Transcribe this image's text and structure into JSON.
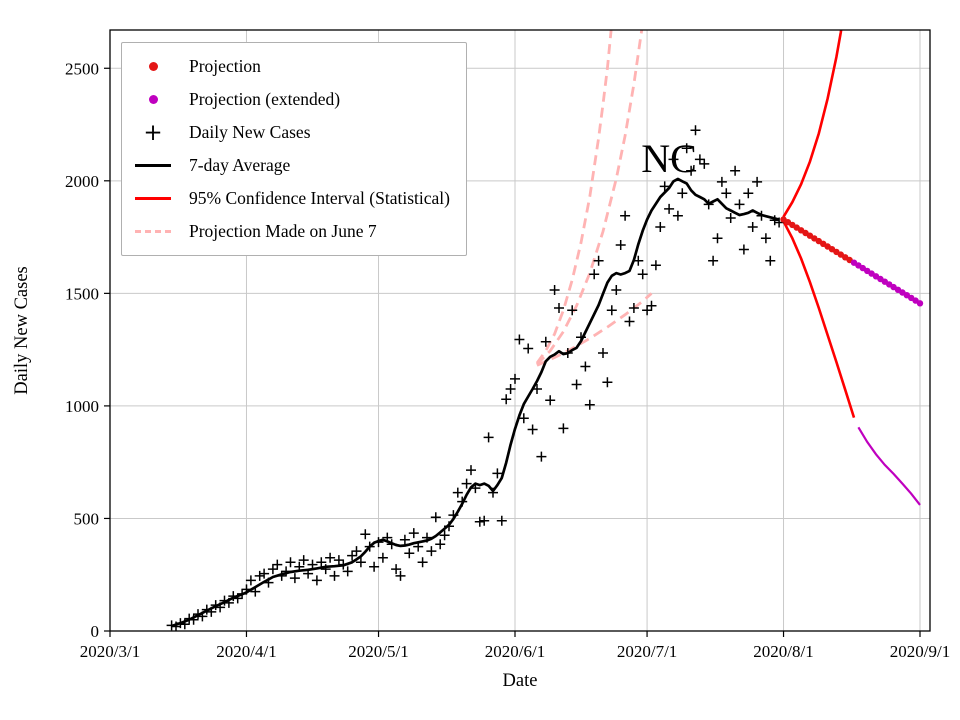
{
  "chart_data": {
    "type": "line",
    "title": "",
    "annotation": {
      "text": "NC",
      "day": 127,
      "value": 2100
    },
    "xlabel": "Date",
    "ylabel": "Daily New Cases",
    "x_epoch": "days since 2020-03-01",
    "x_tick_days": [
      0,
      31,
      61,
      92,
      122,
      153,
      184
    ],
    "x_ticklabels": [
      "2020/3/1",
      "2020/4/1",
      "2020/5/1",
      "2020/6/1",
      "2020/7/1",
      "2020/8/1",
      "2020/9/1"
    ],
    "y_ticks": [
      0,
      500,
      1000,
      1500,
      2000,
      2500
    ],
    "ylim": [
      0,
      2670
    ],
    "xlim_days": [
      0,
      186
    ],
    "grid": true,
    "legend_position": "upper-left",
    "legend": [
      "Projection",
      "Projection (extended)",
      "Daily New Cases",
      "7-day Average",
      "95% Confidence Interval (Statistical)",
      "Projection Made on June 7"
    ],
    "colors": {
      "projection": "#e41616",
      "projection_extended": "#bf00bf",
      "daily": "#000000",
      "average": "#000000",
      "ci": "#ff0000",
      "june7": "#ffb3b3",
      "grid": "#c9c9c9",
      "axis": "#000000"
    },
    "series": {
      "daily_new_cases": [
        [
          14,
          25
        ],
        [
          15,
          20
        ],
        [
          16,
          35
        ],
        [
          17,
          30
        ],
        [
          18,
          55
        ],
        [
          19,
          50
        ],
        [
          20,
          75
        ],
        [
          21,
          65
        ],
        [
          22,
          95
        ],
        [
          23,
          85
        ],
        [
          24,
          115
        ],
        [
          25,
          105
        ],
        [
          26,
          135
        ],
        [
          27,
          125
        ],
        [
          28,
          155
        ],
        [
          29,
          145
        ],
        [
          30,
          165
        ],
        [
          31,
          185
        ],
        [
          32,
          225
        ],
        [
          33,
          175
        ],
        [
          34,
          245
        ],
        [
          35,
          255
        ],
        [
          36,
          215
        ],
        [
          37,
          275
        ],
        [
          38,
          295
        ],
        [
          39,
          245
        ],
        [
          40,
          265
        ],
        [
          41,
          305
        ],
        [
          42,
          235
        ],
        [
          43,
          285
        ],
        [
          44,
          315
        ],
        [
          45,
          255
        ],
        [
          46,
          295
        ],
        [
          47,
          225
        ],
        [
          48,
          305
        ],
        [
          49,
          275
        ],
        [
          50,
          325
        ],
        [
          51,
          245
        ],
        [
          52,
          315
        ],
        [
          53,
          295
        ],
        [
          54,
          265
        ],
        [
          55,
          335
        ],
        [
          56,
          355
        ],
        [
          57,
          305
        ],
        [
          58,
          430
        ],
        [
          59,
          375
        ],
        [
          60,
          285
        ],
        [
          61,
          395
        ],
        [
          62,
          325
        ],
        [
          63,
          415
        ],
        [
          64,
          385
        ],
        [
          65,
          275
        ],
        [
          66,
          245
        ],
        [
          67,
          405
        ],
        [
          68,
          345
        ],
        [
          69,
          435
        ],
        [
          70,
          375
        ],
        [
          71,
          305
        ],
        [
          72,
          415
        ],
        [
          73,
          355
        ],
        [
          74,
          505
        ],
        [
          75,
          385
        ],
        [
          76,
          425
        ],
        [
          77,
          465
        ],
        [
          78,
          515
        ],
        [
          79,
          615
        ],
        [
          80,
          575
        ],
        [
          81,
          655
        ],
        [
          82,
          715
        ],
        [
          83,
          635
        ],
        [
          84,
          485
        ],
        [
          85,
          490
        ],
        [
          86,
          860
        ],
        [
          87,
          615
        ],
        [
          88,
          700
        ],
        [
          89,
          490
        ],
        [
          90,
          1030
        ],
        [
          91,
          1075
        ],
        [
          92,
          1120
        ],
        [
          93,
          1295
        ],
        [
          94,
          945
        ],
        [
          95,
          1255
        ],
        [
          96,
          895
        ],
        [
          97,
          1075
        ],
        [
          98,
          775
        ],
        [
          99,
          1285
        ],
        [
          100,
          1025
        ],
        [
          101,
          1515
        ],
        [
          102,
          1435
        ],
        [
          103,
          900
        ],
        [
          104,
          1235
        ],
        [
          105,
          1425
        ],
        [
          106,
          1095
        ],
        [
          107,
          1305
        ],
        [
          108,
          1175
        ],
        [
          109,
          1005
        ],
        [
          110,
          1585
        ],
        [
          111,
          1645
        ],
        [
          112,
          1235
        ],
        [
          113,
          1105
        ],
        [
          114,
          1425
        ],
        [
          115,
          1515
        ],
        [
          116,
          1715
        ],
        [
          117,
          1845
        ],
        [
          118,
          1375
        ],
        [
          119,
          1435
        ],
        [
          120,
          1645
        ],
        [
          121,
          1585
        ],
        [
          122,
          1425
        ],
        [
          123,
          1445
        ],
        [
          124,
          1625
        ],
        [
          125,
          1795
        ],
        [
          126,
          1975
        ],
        [
          127,
          1875
        ],
        [
          128,
          2095
        ],
        [
          129,
          1845
        ],
        [
          130,
          1945
        ],
        [
          131,
          2145
        ],
        [
          132,
          2045
        ],
        [
          133,
          2225
        ],
        [
          134,
          2095
        ],
        [
          135,
          2075
        ],
        [
          136,
          1895
        ],
        [
          137,
          1645
        ],
        [
          138,
          1745
        ],
        [
          139,
          1995
        ],
        [
          140,
          1945
        ],
        [
          141,
          1835
        ],
        [
          142,
          2045
        ],
        [
          143,
          1895
        ],
        [
          144,
          1695
        ],
        [
          145,
          1945
        ],
        [
          146,
          1795
        ],
        [
          147,
          1995
        ],
        [
          148,
          1845
        ],
        [
          149,
          1745
        ],
        [
          150,
          1645
        ],
        [
          151,
          1825
        ],
        [
          152,
          1815
        ]
      ],
      "seven_day_average": [
        [
          14,
          22
        ],
        [
          16,
          35
        ],
        [
          18,
          50
        ],
        [
          20,
          70
        ],
        [
          22,
          90
        ],
        [
          24,
          110
        ],
        [
          26,
          128
        ],
        [
          28,
          148
        ],
        [
          30,
          163
        ],
        [
          31,
          172
        ],
        [
          33,
          195
        ],
        [
          35,
          218
        ],
        [
          37,
          240
        ],
        [
          39,
          252
        ],
        [
          41,
          262
        ],
        [
          43,
          268
        ],
        [
          45,
          272
        ],
        [
          47,
          278
        ],
        [
          49,
          285
        ],
        [
          51,
          288
        ],
        [
          53,
          292
        ],
        [
          55,
          305
        ],
        [
          56,
          318
        ],
        [
          57,
          332
        ],
        [
          58,
          352
        ],
        [
          59,
          375
        ],
        [
          60,
          392
        ],
        [
          61,
          400
        ],
        [
          62,
          405
        ],
        [
          63,
          398
        ],
        [
          64,
          390
        ],
        [
          65,
          382
        ],
        [
          66,
          378
        ],
        [
          67,
          380
        ],
        [
          68,
          384
        ],
        [
          69,
          390
        ],
        [
          70,
          394
        ],
        [
          71,
          398
        ],
        [
          72,
          402
        ],
        [
          73,
          410
        ],
        [
          74,
          422
        ],
        [
          75,
          438
        ],
        [
          76,
          455
        ],
        [
          77,
          472
        ],
        [
          78,
          498
        ],
        [
          79,
          530
        ],
        [
          80,
          565
        ],
        [
          81,
          605
        ],
        [
          82,
          638
        ],
        [
          83,
          655
        ],
        [
          84,
          648
        ],
        [
          85,
          655
        ],
        [
          86,
          645
        ],
        [
          87,
          622
        ],
        [
          88,
          648
        ],
        [
          89,
          680
        ],
        [
          90,
          748
        ],
        [
          91,
          828
        ],
        [
          92,
          898
        ],
        [
          93,
          958
        ],
        [
          94,
          1008
        ],
        [
          95,
          1042
        ],
        [
          96,
          1075
        ],
        [
          97,
          1110
        ],
        [
          98,
          1150
        ],
        [
          99,
          1198
        ],
        [
          100,
          1218
        ],
        [
          101,
          1228
        ],
        [
          102,
          1243
        ],
        [
          103,
          1230
        ],
        [
          104,
          1234
        ],
        [
          105,
          1248
        ],
        [
          106,
          1258
        ],
        [
          107,
          1288
        ],
        [
          108,
          1328
        ],
        [
          109,
          1368
        ],
        [
          110,
          1408
        ],
        [
          111,
          1448
        ],
        [
          112,
          1498
        ],
        [
          113,
          1548
        ],
        [
          114,
          1578
        ],
        [
          115,
          1590
        ],
        [
          116,
          1584
        ],
        [
          117,
          1590
        ],
        [
          118,
          1600
        ],
        [
          119,
          1648
        ],
        [
          120,
          1718
        ],
        [
          121,
          1778
        ],
        [
          122,
          1828
        ],
        [
          123,
          1868
        ],
        [
          124,
          1898
        ],
        [
          125,
          1928
        ],
        [
          126,
          1948
        ],
        [
          127,
          1968
        ],
        [
          128,
          1998
        ],
        [
          129,
          2008
        ],
        [
          130,
          1998
        ],
        [
          131,
          1988
        ],
        [
          132,
          1958
        ],
        [
          133,
          1938
        ],
        [
          134,
          1928
        ],
        [
          135,
          1918
        ],
        [
          136,
          1898
        ],
        [
          137,
          1908
        ],
        [
          138,
          1918
        ],
        [
          139,
          1898
        ],
        [
          140,
          1878
        ],
        [
          141,
          1868
        ],
        [
          142,
          1858
        ],
        [
          143,
          1848
        ],
        [
          144,
          1852
        ],
        [
          145,
          1858
        ],
        [
          146,
          1868
        ],
        [
          147,
          1858
        ],
        [
          148,
          1848
        ],
        [
          149,
          1843
        ],
        [
          150,
          1838
        ],
        [
          151,
          1833
        ],
        [
          152,
          1828
        ]
      ],
      "projection": [
        [
          153,
          1828
        ],
        [
          154,
          1816
        ],
        [
          155,
          1804
        ],
        [
          156,
          1792
        ],
        [
          157,
          1780
        ],
        [
          158,
          1768
        ],
        [
          159,
          1756
        ],
        [
          160,
          1744
        ],
        [
          161,
          1732
        ],
        [
          162,
          1720
        ],
        [
          163,
          1708
        ],
        [
          164,
          1696
        ],
        [
          165,
          1684
        ],
        [
          166,
          1672
        ],
        [
          167,
          1660
        ],
        [
          168,
          1648
        ]
      ],
      "projection_extended": [
        [
          169,
          1636
        ],
        [
          170,
          1624
        ],
        [
          171,
          1612
        ],
        [
          172,
          1600
        ],
        [
          173,
          1588
        ],
        [
          174,
          1576
        ],
        [
          175,
          1564
        ],
        [
          176,
          1552
        ],
        [
          177,
          1540
        ],
        [
          178,
          1528
        ],
        [
          179,
          1516
        ],
        [
          180,
          1504
        ],
        [
          181,
          1492
        ],
        [
          182,
          1480
        ],
        [
          183,
          1468
        ],
        [
          184,
          1456
        ]
      ],
      "ci_upper": [
        [
          153,
          1840
        ],
        [
          155,
          1905
        ],
        [
          157,
          1985
        ],
        [
          159,
          2085
        ],
        [
          161,
          2210
        ],
        [
          163,
          2365
        ],
        [
          165,
          2550
        ],
        [
          166,
          2660
        ],
        [
          167,
          2790
        ]
      ],
      "ci_lower": [
        [
          153,
          1820
        ],
        [
          155,
          1745
        ],
        [
          157,
          1655
        ],
        [
          159,
          1550
        ],
        [
          161,
          1435
        ],
        [
          163,
          1315
        ],
        [
          165,
          1195
        ],
        [
          167,
          1072
        ],
        [
          169,
          948
        ]
      ],
      "ci_lower_extended": [
        [
          170,
          905
        ],
        [
          172,
          840
        ],
        [
          174,
          785
        ],
        [
          176,
          738
        ],
        [
          178,
          698
        ],
        [
          180,
          655
        ],
        [
          182,
          610
        ],
        [
          184,
          560
        ]
      ],
      "june7_upper": [
        [
          97,
          1190
        ],
        [
          99,
          1245
        ],
        [
          101,
          1320
        ],
        [
          103,
          1425
        ],
        [
          105,
          1560
        ],
        [
          107,
          1725
        ],
        [
          109,
          1930
        ],
        [
          111,
          2190
        ],
        [
          112,
          2340
        ],
        [
          113,
          2500
        ],
        [
          114,
          2700
        ]
      ],
      "june7_mid": [
        [
          97,
          1185
        ],
        [
          100,
          1245
        ],
        [
          103,
          1330
        ],
        [
          106,
          1445
        ],
        [
          109,
          1590
        ],
        [
          112,
          1775
        ],
        [
          115,
          2010
        ],
        [
          117,
          2200
        ],
        [
          119,
          2430
        ],
        [
          121,
          2700
        ]
      ],
      "june7_lower": [
        [
          97,
          1180
        ],
        [
          101,
          1215
        ],
        [
          105,
          1255
        ],
        [
          109,
          1300
        ],
        [
          113,
          1350
        ],
        [
          117,
          1405
        ],
        [
          121,
          1465
        ],
        [
          123,
          1500
        ]
      ]
    }
  }
}
